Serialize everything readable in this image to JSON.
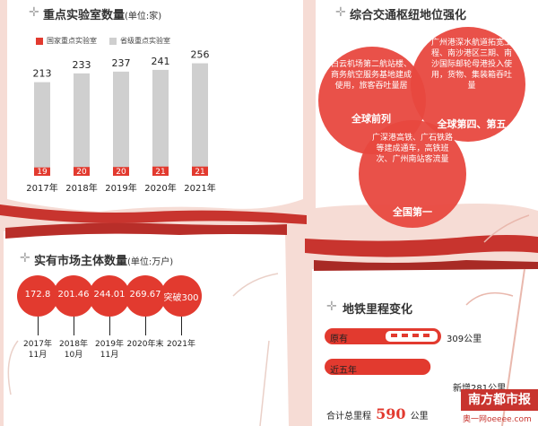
{
  "chart_data": [
    {
      "type": "bar",
      "title": "重点实验室数量",
      "unit": "(单位:家)",
      "categories": [
        "2017年",
        "2018年",
        "2019年",
        "2020年",
        "2021年"
      ],
      "series": [
        {
          "name": "国家重点实验室",
          "values": [
            19,
            20,
            20,
            21,
            21
          ],
          "color": "#e23a2f"
        },
        {
          "name": "省级重点实验室",
          "values": [
            213,
            233,
            237,
            241,
            256
          ],
          "color": "#cfcfcf"
        }
      ],
      "ylim": [
        0,
        300
      ]
    },
    {
      "type": "bubble",
      "title": "实有市场主体数量",
      "unit": "(单位:万户)",
      "labels": [
        "172.8",
        "201.46",
        "244.01",
        "269.67",
        "突破300"
      ],
      "values": [
        172.8,
        201.46,
        244.01,
        269.67,
        300
      ],
      "periods": [
        "2017年11月",
        "2018年10月",
        "2019年11月",
        "2020年末",
        "2021年"
      ]
    },
    {
      "type": "bar",
      "title": "地铁里程变化",
      "categories": [
        "原有",
        "近五年"
      ],
      "values": [
        309,
        281
      ],
      "value_labels": [
        "309公里",
        "新增281公里"
      ],
      "total_label": "合计总里程",
      "total_value": "590",
      "total_unit": "公里",
      "xlim": [
        0,
        309
      ]
    }
  ],
  "hub": {
    "title": "综合交通枢纽地位强化",
    "circles": [
      {
        "text": "白云机场第二航站楼、商务航空服务基地建成使用，旅客吞吐量居",
        "strong": "全球前列"
      },
      {
        "text": "广州港深水航道拓宽工程、南沙港区三期、南沙国际邮轮母港投入使用，货物、集装箱吞吐量",
        "strong": "全球第四、第五"
      },
      {
        "text": "广深港高铁、广石铁路等建成通车，高铁班次、广州南站客流量",
        "strong": "全国第一"
      }
    ]
  },
  "brand": {
    "name": "南方都市报",
    "watermark": "奥一网oeeee.com"
  }
}
